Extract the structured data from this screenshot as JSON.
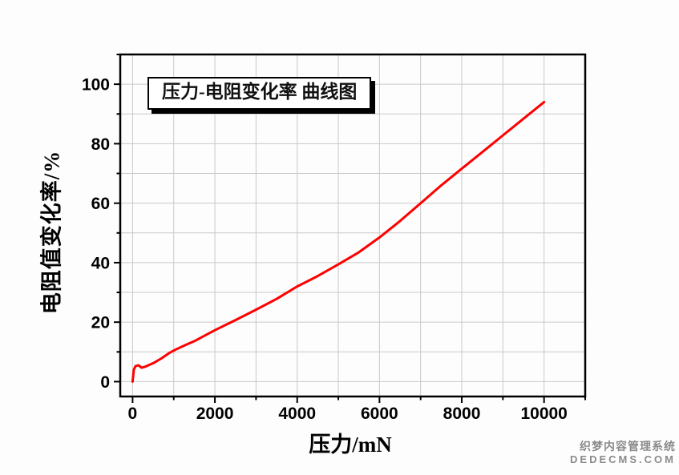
{
  "watermark": {
    "line1": "织梦内容管理系统",
    "line2": "DEDECMS.COM",
    "color": "#8a8a8a"
  },
  "chart_data": {
    "type": "line",
    "title": "压力-电阻变化率 曲线图",
    "xlabel": "压力/mN",
    "ylabel": "电阻值变化率/%",
    "xlim": [
      -300,
      11000
    ],
    "ylim": [
      -5,
      110
    ],
    "x_major_ticks": [
      0,
      2000,
      4000,
      6000,
      8000,
      10000
    ],
    "x_minor_step": 1000,
    "y_major_ticks": [
      0,
      20,
      40,
      60,
      80,
      100
    ],
    "y_minor_step": 10,
    "grid": "on",
    "grid_color": "#c9c9c9",
    "axis_color": "#000000",
    "tick_label_color": "#000000",
    "legend_position": "none",
    "series": [
      {
        "name": "压力-电阻变化率",
        "color": "#ff0000",
        "x": [
          0,
          30,
          70,
          140,
          220,
          300,
          500,
          700,
          900,
          1050,
          1300,
          1500,
          2000,
          2500,
          3000,
          3500,
          4000,
          4500,
          5000,
          5500,
          6000,
          6500,
          7000,
          7500,
          8000,
          8500,
          9000,
          9500,
          10000
        ],
        "y": [
          0,
          4.0,
          5.2,
          5.5,
          4.7,
          5.0,
          6.2,
          7.8,
          9.7,
          10.8,
          12.4,
          13.6,
          17.3,
          20.7,
          24.2,
          27.8,
          32.0,
          35.5,
          39.4,
          43.5,
          48.5,
          54.0,
          60.0,
          66.0,
          71.6,
          77.2,
          82.8,
          88.4,
          94.0
        ]
      }
    ]
  }
}
